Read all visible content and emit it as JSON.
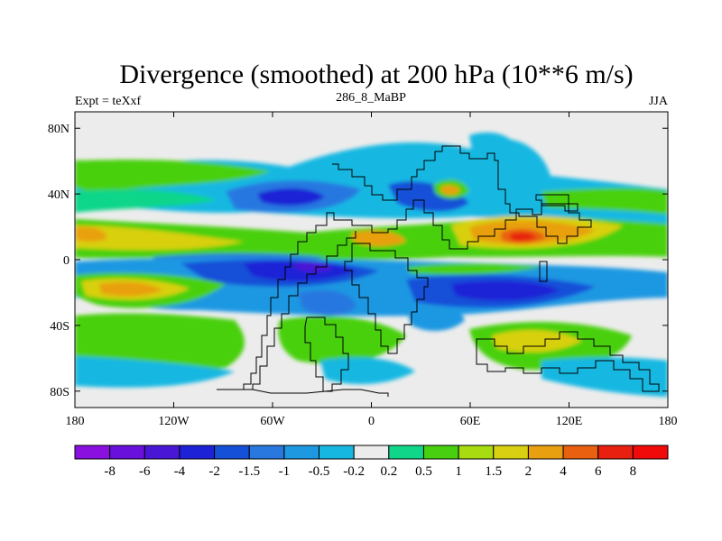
{
  "chart_data": {
    "type": "heatmap",
    "title": "Divergence (smoothed) at 200 hPa (10**6 m/s)",
    "left_string": "Expt = teXxf",
    "center_string": "286_8_MaBP",
    "right_string": "JJA",
    "x_axis": {
      "range": [
        -180,
        180
      ],
      "ticks": [
        -180,
        -120,
        -60,
        0,
        60,
        120,
        180
      ],
      "tick_labels": [
        "180",
        "120W",
        "60W",
        "0",
        "60E",
        "120E",
        "180"
      ]
    },
    "y_axis": {
      "range": [
        -90,
        90
      ],
      "ticks": [
        80,
        40,
        0,
        -40,
        -80
      ],
      "tick_labels": [
        "80N",
        "40N",
        "0",
        "40S",
        "80S"
      ]
    },
    "colorbar": {
      "levels": [
        "-8",
        "-6",
        "-4",
        "-2",
        "-1.5",
        "-1",
        "-0.5",
        "-0.2",
        "0.2",
        "0.5",
        "1",
        "1.5",
        "2",
        "4",
        "6",
        "8"
      ],
      "colors": [
        "#8a10e0",
        "#6a10dc",
        "#4a16d6",
        "#1e22d6",
        "#1450d8",
        "#2878e0",
        "#1f98e2",
        "#16b8e2",
        "#ececec",
        "#10d68a",
        "#48d010",
        "#a8dc10",
        "#d8d010",
        "#e8a010",
        "#e86010",
        "#e82010",
        "#f00a0a"
      ]
    }
  }
}
